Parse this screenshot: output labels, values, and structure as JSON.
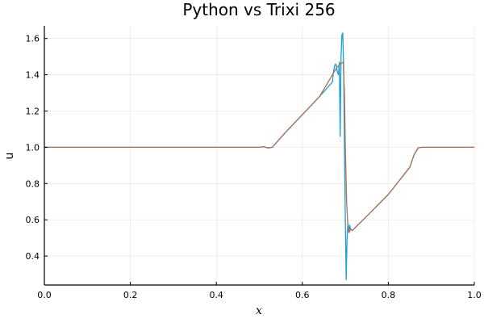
{
  "chart_data": {
    "type": "line",
    "title": "Python vs Trixi 256",
    "xlabel": "x",
    "ylabel": "u",
    "xlim": [
      0.0,
      1.0
    ],
    "ylim": [
      0.24,
      1.67
    ],
    "xticks": [
      0.0,
      0.2,
      0.4,
      0.6,
      0.8,
      1.0
    ],
    "xtick_labels": [
      "0.0",
      "0.2",
      "0.4",
      "0.6",
      "0.8",
      "1.0"
    ],
    "yticks": [
      0.4,
      0.6,
      0.8,
      1.0,
      1.2,
      1.4,
      1.6
    ],
    "ytick_labels": [
      "0.4",
      "0.6",
      "0.8",
      "1.0",
      "1.2",
      "1.4",
      "1.6"
    ],
    "grid": true,
    "legend": false,
    "series": [
      {
        "color": "#1a9fd6",
        "points": [
          [
            0.0,
            1.0
          ],
          [
            0.5,
            1.0
          ],
          [
            0.51,
            1.004
          ],
          [
            0.52,
            0.997
          ],
          [
            0.53,
            1.0
          ],
          [
            0.56,
            1.08
          ],
          [
            0.6,
            1.18
          ],
          [
            0.64,
            1.28
          ],
          [
            0.67,
            1.36
          ],
          [
            0.672,
            1.41
          ],
          [
            0.675,
            1.45
          ],
          [
            0.678,
            1.46
          ],
          [
            0.681,
            1.42
          ],
          [
            0.684,
            1.4
          ],
          [
            0.686,
            1.47
          ],
          [
            0.688,
            1.06
          ],
          [
            0.69,
            1.5
          ],
          [
            0.692,
            1.62
          ],
          [
            0.694,
            1.63
          ],
          [
            0.696,
            1.45
          ],
          [
            0.698,
            1.0
          ],
          [
            0.7,
            0.6
          ],
          [
            0.702,
            0.27
          ],
          [
            0.704,
            0.5
          ],
          [
            0.706,
            0.58
          ],
          [
            0.708,
            0.53
          ],
          [
            0.71,
            0.57
          ],
          [
            0.712,
            0.55
          ],
          [
            0.716,
            0.54
          ],
          [
            0.72,
            0.55
          ],
          [
            0.75,
            0.62
          ],
          [
            0.8,
            0.74
          ],
          [
            0.85,
            0.89
          ],
          [
            0.86,
            0.96
          ],
          [
            0.87,
            0.998
          ],
          [
            0.88,
            1.0
          ],
          [
            1.0,
            1.0
          ]
        ]
      },
      {
        "color": "#b07055",
        "points": [
          [
            0.0,
            1.0
          ],
          [
            0.5,
            1.0
          ],
          [
            0.51,
            1.003
          ],
          [
            0.52,
            0.996
          ],
          [
            0.53,
            1.0
          ],
          [
            0.56,
            1.08
          ],
          [
            0.6,
            1.18
          ],
          [
            0.64,
            1.28
          ],
          [
            0.68,
            1.44
          ],
          [
            0.688,
            1.46
          ],
          [
            0.692,
            1.465
          ],
          [
            0.695,
            1.47
          ],
          [
            0.698,
            1.3
          ],
          [
            0.7,
            1.0
          ],
          [
            0.703,
            0.7
          ],
          [
            0.706,
            0.56
          ],
          [
            0.709,
            0.53
          ],
          [
            0.712,
            0.55
          ],
          [
            0.716,
            0.54
          ],
          [
            0.72,
            0.55
          ],
          [
            0.75,
            0.62
          ],
          [
            0.8,
            0.74
          ],
          [
            0.85,
            0.89
          ],
          [
            0.86,
            0.96
          ],
          [
            0.87,
            0.998
          ],
          [
            0.88,
            1.0
          ],
          [
            1.0,
            1.0
          ]
        ]
      }
    ]
  }
}
